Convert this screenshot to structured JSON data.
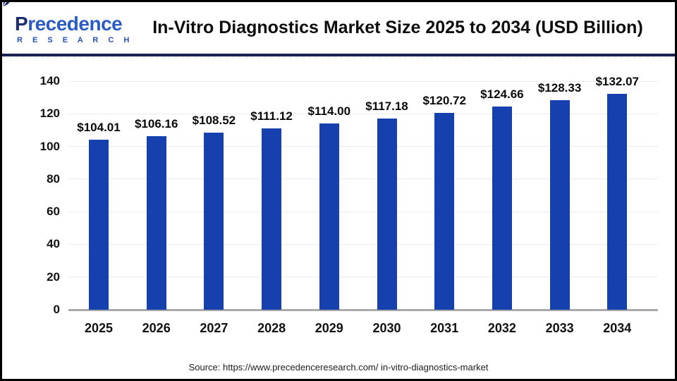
{
  "logo": {
    "word": "Precedence",
    "subtitle": "R E S E A R C H"
  },
  "header": {
    "title": "In-Vitro Diagnostics Market Size 2025 to 2034 (USD Billion)"
  },
  "source": {
    "text": "Source: https://www.precedenceresearch.com/ in-vitro-diagnostics-market"
  },
  "colors": {
    "bar": "#1540ae",
    "header_rule": "#1a2155",
    "gridline": "#ececec",
    "axis_line": "#a9a9a9",
    "logo_navy": "#1e2d6e",
    "logo_blue": "#2b5cc4"
  },
  "chart_data": {
    "type": "bar",
    "title": "In-Vitro Diagnostics Market Size 2025 to 2034 (USD Billion)",
    "categories": [
      "2025",
      "2026",
      "2027",
      "2028",
      "2029",
      "2030",
      "2031",
      "2032",
      "2033",
      "2034"
    ],
    "values": [
      104.01,
      106.16,
      108.52,
      111.12,
      114.0,
      117.18,
      120.72,
      124.66,
      128.33,
      132.07
    ],
    "value_labels": [
      "$104.01",
      "$106.16",
      "$108.52",
      "$111.12",
      "$114.00",
      "$117.18",
      "$120.72",
      "$124.66",
      "$128.33",
      "$132.07"
    ],
    "value_prefix": "$",
    "unit": "USD Billion",
    "xlabel": "",
    "ylabel": "",
    "ylim": [
      0,
      140
    ],
    "yticks": [
      0,
      20,
      40,
      60,
      80,
      100,
      120,
      140
    ],
    "grid": true,
    "legend": false,
    "bar_color": "#1540ae"
  }
}
